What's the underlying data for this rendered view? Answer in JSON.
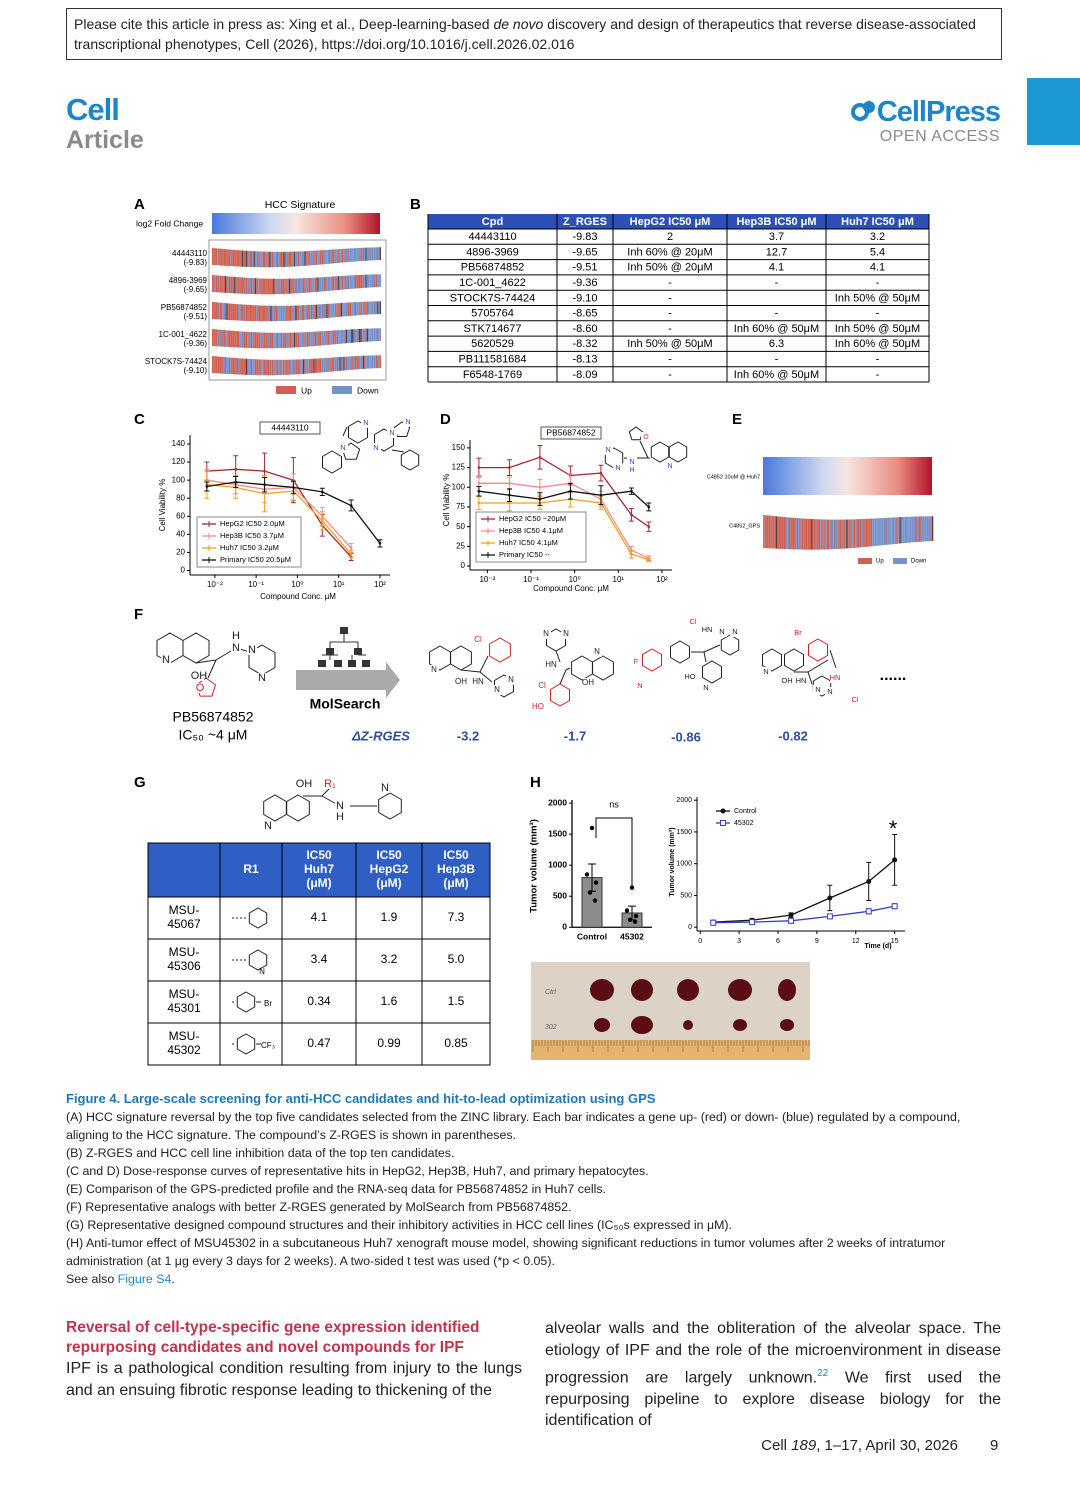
{
  "header": {
    "citation": [
      "Please cite this article in press as: Xing et al., Deep-learning-based ",
      "de novo",
      " discovery and design of therapeutics that reverse disease-associated transcriptional phenotypes, Cell (2026), https://doi.org/10.1016/j.cell.2026.02.016"
    ]
  },
  "journal": {
    "name": "Cell",
    "section": "Article",
    "publisher": "CellPress",
    "access": "OPEN ACCESS"
  },
  "figure": {
    "A": {
      "letter": "A",
      "title": "HCC Signature",
      "scale_label": "log2 Fold Change",
      "rows": [
        {
          "name": "44443110",
          "score": "(-9.83)"
        },
        {
          "name": "4896-3969",
          "score": "(-9.65)"
        },
        {
          "name": "PB56874852",
          "score": "(-9.51)"
        },
        {
          "name": "1C-001_4622",
          "score": "(-9.36)"
        },
        {
          "name": "STOCK7S-74424",
          "score": "(-9.10)"
        }
      ],
      "legend": [
        "Up",
        "Down"
      ]
    },
    "B": {
      "letter": "B",
      "columns": [
        "Cpd",
        "Z_RGES",
        "HepG2 IC50 μM",
        "Hep3B IC50 μM",
        "Huh7 IC50 μM"
      ],
      "rows": [
        [
          "44443110",
          "-9.83",
          "2",
          "3.7",
          "3.2"
        ],
        [
          "4896-3969",
          "-9.65",
          "Inh 60% @ 20μM",
          "12.7",
          "5.4"
        ],
        [
          "PB56874852",
          "-9.51",
          "Inh 50% @ 20μM",
          "4.1",
          "4.1"
        ],
        [
          "1C-001_4622",
          "-9.36",
          "-",
          "-",
          "-"
        ],
        [
          "STOCK7S-74424",
          "-9.10",
          "-",
          null,
          "Inh 50% @ 50μM"
        ],
        [
          "5705764",
          "-8.65",
          "-",
          "-",
          "-"
        ],
        [
          "STK714677",
          "-8.60",
          "-",
          "Inh 60% @ 50μM",
          "Inh 50% @ 50μM"
        ],
        [
          "5620529",
          "-8.32",
          "Inh 50% @ 50μM",
          "6.3",
          "Inh 60% @ 50μM"
        ],
        [
          "PB111581684",
          "-8.13",
          "-",
          "-",
          "-"
        ],
        [
          "F6548-1769",
          "-8.09",
          "-",
          "Inh 60% @ 50μM",
          "-"
        ]
      ]
    },
    "C": {
      "letter": "C",
      "type": "line",
      "title": "44443110",
      "ylabel": "Cell Viability %",
      "xlabel": "Compound Conc. μM",
      "log_x": true,
      "xlim": [
        0.0025,
        175
      ],
      "ylim": [
        -5,
        150
      ],
      "xticks": [
        {
          "value": 0.01,
          "label": "10⁻²"
        },
        {
          "value": 0.1,
          "label": "10⁻¹"
        },
        {
          "value": 1,
          "label": "10⁰"
        },
        {
          "value": 10,
          "label": "10¹"
        },
        {
          "value": 100,
          "label": "10²"
        }
      ],
      "yticks": [
        0,
        20,
        40,
        60,
        80,
        100,
        120,
        140
      ],
      "x": [
        0.0064,
        0.032,
        0.16,
        0.8,
        4,
        20,
        100
      ],
      "series": [
        {
          "name": "HepG2 IC50 2.0μM",
          "color": "#a52a2f",
          "values": [
            110,
            112,
            110,
            100,
            50,
            15,
            null
          ],
          "errors": [
            10,
            15,
            20,
            25,
            12,
            4,
            null
          ]
        },
        {
          "name": "Hep3B IC50 3.7μM",
          "color": "#f08b8b",
          "values": [
            100,
            95,
            90,
            92,
            60,
            25,
            null
          ],
          "errors": [
            12,
            10,
            15,
            15,
            10,
            5,
            null
          ]
        },
        {
          "name": "Huh7 IC50 3.2μM",
          "color": "#f0a020",
          "values": [
            95,
            92,
            85,
            88,
            55,
            18,
            null
          ],
          "errors": [
            15,
            12,
            20,
            10,
            10,
            4,
            null
          ]
        },
        {
          "name": "Primary IC50 20.5μM",
          "color": "#111111",
          "values": [
            93,
            98,
            95,
            92,
            87,
            72,
            30
          ],
          "errors": [
            5,
            6,
            8,
            7,
            4,
            6,
            4
          ]
        }
      ],
      "atoms": [
        "N",
        "N",
        "N",
        "N",
        "N"
      ]
    },
    "D": {
      "letter": "D",
      "type": "line",
      "title": "PB56874852",
      "ylabel": "Cell Viability %",
      "xlabel": "Compound Conc. μM",
      "log_x": true,
      "xlim": [
        0.004,
        170
      ],
      "ylim": [
        -5,
        160
      ],
      "xticks": [
        {
          "value": 0.01,
          "label": "10⁻²"
        },
        {
          "value": 0.1,
          "label": "10⁻¹"
        },
        {
          "value": 1,
          "label": "10⁰"
        },
        {
          "value": 10,
          "label": "10¹"
        },
        {
          "value": 100,
          "label": "10²"
        }
      ],
      "yticks": [
        0,
        25,
        50,
        75,
        100,
        125,
        150
      ],
      "x": [
        0.0064,
        0.032,
        0.16,
        0.8,
        4,
        20,
        50
      ],
      "series": [
        {
          "name": "HepG2 IC50 ~20μM",
          "color": "#a52a2f",
          "values": [
            125,
            125,
            138,
            115,
            118,
            65,
            50
          ],
          "errors": [
            12,
            10,
            15,
            12,
            10,
            8,
            6
          ]
        },
        {
          "name": "Hep3B IC50 4.1μM",
          "color": "#f08b8b",
          "values": [
            105,
            105,
            100,
            105,
            85,
            20,
            10
          ],
          "errors": [
            10,
            8,
            10,
            12,
            10,
            5,
            3
          ]
        },
        {
          "name": "Huh7 IC50 4.1μM",
          "color": "#f0a020",
          "values": [
            80,
            80,
            80,
            85,
            80,
            15,
            8
          ],
          "errors": [
            8,
            10,
            8,
            10,
            8,
            5,
            2
          ]
        },
        {
          "name": "Primary IC50 --",
          "color": "#111111",
          "values": [
            95,
            90,
            85,
            95,
            90,
            95,
            75
          ],
          "errors": [
            6,
            8,
            8,
            10,
            12,
            4,
            5
          ]
        }
      ],
      "atoms": [
        "O",
        "N",
        "N",
        "N",
        "H",
        "N"
      ]
    },
    "E": {
      "letter": "E",
      "top_label": "C4852 10uM @ Huh7",
      "bottom_label": "C4852_GPS",
      "legend": [
        "Up",
        "Down"
      ]
    },
    "F": {
      "letter": "F",
      "lead": {
        "name": "PB56874852",
        "ic50": "IC₅₀ ~4 μM",
        "atoms": [
          "N",
          "OH",
          "O",
          "H",
          "N",
          "N",
          "N"
        ]
      },
      "method": "MolSearch",
      "metric": "ΔZ-RGES",
      "analogs": [
        {
          "delta": "-3.2",
          "atoms": [
            "Cl",
            "N",
            "OH",
            "HN",
            "N",
            "N"
          ]
        },
        {
          "delta": "-1.7",
          "atoms": [
            "N",
            "N",
            "HN",
            "N",
            "Cl",
            "OH",
            "HO"
          ]
        },
        {
          "delta": "-0.86",
          "atoms": [
            "Cl",
            "F",
            "N",
            "HN",
            "N",
            "N",
            "HO",
            "N"
          ]
        },
        {
          "delta": "-0.82",
          "atoms": [
            "Br",
            "N",
            "OH",
            "HN",
            "N",
            "N",
            "HN",
            "Cl"
          ]
        }
      ],
      "ellipsis": "......"
    },
    "G": {
      "letter": "G",
      "atoms": [
        "OH",
        "R₁",
        "N",
        "N",
        "H",
        "N"
      ],
      "columns": [
        "R1",
        [
          "IC50",
          "Huh7",
          "(μM)"
        ],
        [
          "IC50",
          "HepG2",
          "(μM)"
        ],
        [
          "IC50",
          "Hep3B",
          "(μM)"
        ]
      ],
      "rows": [
        {
          "id": [
            "MSU-",
            "45067"
          ],
          "values": [
            "4.1",
            "1.9",
            "7.3"
          ]
        },
        {
          "id": [
            "MSU-",
            "45306"
          ],
          "r_atoms": [
            "N"
          ],
          "values": [
            "3.4",
            "3.2",
            "5.0"
          ]
        },
        {
          "id": [
            "MSU-",
            "45301"
          ],
          "r_atoms": [
            "Br"
          ],
          "values": [
            "0.34",
            "1.6",
            "1.5"
          ]
        },
        {
          "id": [
            "MSU-",
            "45302"
          ],
          "r_atoms": [
            "CF₃"
          ],
          "values": [
            "0.47",
            "0.99",
            "0.85"
          ]
        }
      ]
    },
    "H": {
      "letter": "H",
      "bar": {
        "type": "bar",
        "ylabel": "Tumor volume (mm³)",
        "categories": [
          "Control",
          "45302"
        ],
        "values": [
          800,
          230
        ],
        "errors": [
          220,
          110
        ],
        "points": [
          [
            1600,
            850,
            720,
            560,
            430
          ],
          [
            640,
            270,
            180,
            120,
            90
          ]
        ],
        "color": "#8c8c8c",
        "ylim": [
          -60,
          2050
        ],
        "yticks": [
          0,
          500,
          1000,
          1500,
          2000
        ],
        "annotation": "ns"
      },
      "line": {
        "type": "line",
        "ylabel": "Tumor volume (mm³)",
        "xlabel": "Time (d)",
        "log_x": false,
        "xlim": [
          -0.25,
          15.8
        ],
        "ylim": [
          -60,
          2050
        ],
        "xticks": [
          0,
          3,
          6,
          9,
          12,
          15
        ],
        "yticks": [
          0,
          500,
          1000,
          1500,
          2000
        ],
        "x": [
          1,
          4,
          7,
          10,
          13,
          15
        ],
        "series": [
          {
            "name": "Control",
            "color": "#111111",
            "marker": "circle",
            "values": [
              80,
              110,
              190,
              460,
              720,
              1060
            ],
            "errors": [
              30,
              25,
              35,
              200,
              300,
              400
            ]
          },
          {
            "name": "45302",
            "color": "#3340c0",
            "marker": "square",
            "values": [
              70,
              80,
              100,
              170,
              250,
              330
            ],
            "errors": [
              20,
              15,
              20,
              30,
              40,
              40
            ]
          }
        ],
        "annotation": "*"
      },
      "photo_labels": [
        "Ctrl",
        "302"
      ]
    }
  },
  "caption": {
    "title": "Figure 4. Large-scale screening for anti-HCC candidates and hit-to-lead optimization using GPS",
    "lines": [
      "(A) HCC signature reversal by the top five candidates selected from the ZINC library. Each bar indicates a gene up- (red) or down- (blue) regulated by a compound, aligning to the HCC signature. The compound’s Z-RGES is shown in parentheses.",
      "(B) Z-RGES and HCC cell line inhibition data of the top ten candidates.",
      "(C and D) Dose-response curves of representative hits in HepG2, Hep3B, Huh7, and primary hepatocytes.",
      "(E) Comparison of the GPS-predicted profile and the RNA-seq data for PB56874852 in Huh7 cells.",
      "(F) Representative analogs with better Z-RGES generated by MolSearch from PB56874852.",
      "(G) Representative designed compound structures and their inhibitory activities in HCC cell lines (IC₅₀s expressed in μM).",
      "(H) Anti-tumor effect of MSU45302 in a subcutaneous Huh7 xenograft mouse model, showing significant reductions in tumor volumes after 2 weeks of intratumor administration (at 1 μg every 3 days for 2 weeks). A two-sided t test was used (*p < 0.05)."
    ],
    "see_also": [
      "See also ",
      "Figure S4",
      "."
    ]
  },
  "body": {
    "heading": "Reversal of cell-type-specific gene expression identified repurposing candidates and novel compounds for IPF",
    "left": "IPF is a pathological condition resulting from injury to the lungs and an ensuing fibrotic response leading to thickening of the",
    "right": [
      "alveolar walls and the obliteration of the alveolar space. The etiology of IPF and the role of the microenvironment in disease progression are largely unknown.",
      "22",
      " We first used the repurposing pipeline to explore disease biology for the identification of"
    ]
  },
  "footer": {
    "journal": "Cell",
    "volume": "189",
    "rest": ", 1–17, April 30, 2026",
    "page": "9"
  }
}
